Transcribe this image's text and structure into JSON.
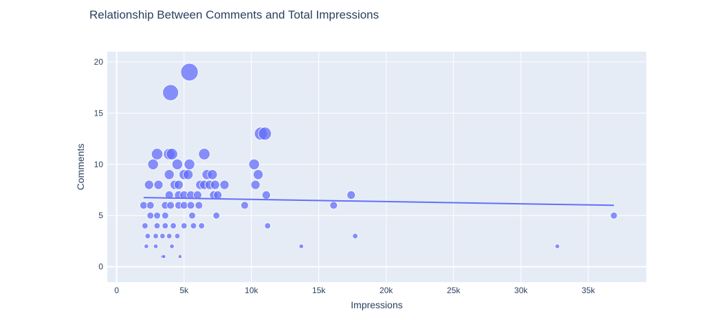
{
  "chart_data": {
    "type": "scatter",
    "title": "Relationship Between Comments and Total Impressions",
    "xlabel": "Impressions",
    "ylabel": "Comments",
    "xlim": [
      -700,
      39300
    ],
    "ylim": [
      -1.5,
      21
    ],
    "x_ticks": [
      0,
      5000,
      10000,
      15000,
      20000,
      25000,
      30000,
      35000
    ],
    "x_tick_labels": [
      "0",
      "5k",
      "10k",
      "15k",
      "20k",
      "25k",
      "30k",
      "35k"
    ],
    "y_ticks": [
      0,
      5,
      10,
      15,
      20
    ],
    "y_tick_labels": [
      "0",
      "5",
      "10",
      "15",
      "20"
    ],
    "grid": true,
    "legend": "none",
    "colors": {
      "marker": "#636efa",
      "trendline": "#636efa",
      "plot_bg": "#e5ecf6",
      "grid": "#ffffff",
      "text": "#2a3f5f"
    },
    "points": [
      {
        "x": 5400,
        "y": 19
      },
      {
        "x": 4000,
        "y": 17
      },
      {
        "x": 10700,
        "y": 13
      },
      {
        "x": 11000,
        "y": 13
      },
      {
        "x": 3000,
        "y": 11
      },
      {
        "x": 3900,
        "y": 11
      },
      {
        "x": 4100,
        "y": 11
      },
      {
        "x": 6500,
        "y": 11
      },
      {
        "x": 2700,
        "y": 10
      },
      {
        "x": 4500,
        "y": 10
      },
      {
        "x": 5400,
        "y": 10
      },
      {
        "x": 10200,
        "y": 10
      },
      {
        "x": 3900,
        "y": 9
      },
      {
        "x": 5000,
        "y": 9
      },
      {
        "x": 5300,
        "y": 9
      },
      {
        "x": 6700,
        "y": 9
      },
      {
        "x": 7100,
        "y": 9
      },
      {
        "x": 10500,
        "y": 9
      },
      {
        "x": 2400,
        "y": 8
      },
      {
        "x": 3100,
        "y": 8
      },
      {
        "x": 4300,
        "y": 8
      },
      {
        "x": 4600,
        "y": 8
      },
      {
        "x": 6200,
        "y": 8
      },
      {
        "x": 6500,
        "y": 8
      },
      {
        "x": 6900,
        "y": 8
      },
      {
        "x": 7300,
        "y": 8
      },
      {
        "x": 8000,
        "y": 8
      },
      {
        "x": 10300,
        "y": 8
      },
      {
        "x": 3900,
        "y": 7
      },
      {
        "x": 4600,
        "y": 7
      },
      {
        "x": 5000,
        "y": 7
      },
      {
        "x": 5500,
        "y": 7
      },
      {
        "x": 6000,
        "y": 7
      },
      {
        "x": 7200,
        "y": 7
      },
      {
        "x": 7500,
        "y": 7
      },
      {
        "x": 11100,
        "y": 7
      },
      {
        "x": 17400,
        "y": 7
      },
      {
        "x": 2000,
        "y": 6
      },
      {
        "x": 2500,
        "y": 6
      },
      {
        "x": 3600,
        "y": 6
      },
      {
        "x": 4000,
        "y": 6
      },
      {
        "x": 4600,
        "y": 6
      },
      {
        "x": 5000,
        "y": 6
      },
      {
        "x": 5500,
        "y": 6
      },
      {
        "x": 6100,
        "y": 6
      },
      {
        "x": 9500,
        "y": 6
      },
      {
        "x": 16100,
        "y": 6
      },
      {
        "x": 2500,
        "y": 5
      },
      {
        "x": 3000,
        "y": 5
      },
      {
        "x": 3600,
        "y": 5
      },
      {
        "x": 5600,
        "y": 5
      },
      {
        "x": 7400,
        "y": 5
      },
      {
        "x": 36900,
        "y": 5
      },
      {
        "x": 2100,
        "y": 4
      },
      {
        "x": 3000,
        "y": 4
      },
      {
        "x": 3600,
        "y": 4
      },
      {
        "x": 4200,
        "y": 4
      },
      {
        "x": 5000,
        "y": 4
      },
      {
        "x": 5700,
        "y": 4
      },
      {
        "x": 6300,
        "y": 4
      },
      {
        "x": 11200,
        "y": 4
      },
      {
        "x": 2300,
        "y": 3
      },
      {
        "x": 2900,
        "y": 3
      },
      {
        "x": 3400,
        "y": 3
      },
      {
        "x": 3900,
        "y": 3
      },
      {
        "x": 4500,
        "y": 3
      },
      {
        "x": 17700,
        "y": 3
      },
      {
        "x": 2200,
        "y": 2
      },
      {
        "x": 2900,
        "y": 2
      },
      {
        "x": 4100,
        "y": 2
      },
      {
        "x": 13700,
        "y": 2
      },
      {
        "x": 32700,
        "y": 2
      },
      {
        "x": 3400,
        "y": 1
      },
      {
        "x": 3500,
        "y": 1
      },
      {
        "x": 4700,
        "y": 1
      }
    ],
    "trendline": {
      "x": [
        2000,
        36900
      ],
      "y": [
        6.75,
        6.0
      ]
    }
  }
}
